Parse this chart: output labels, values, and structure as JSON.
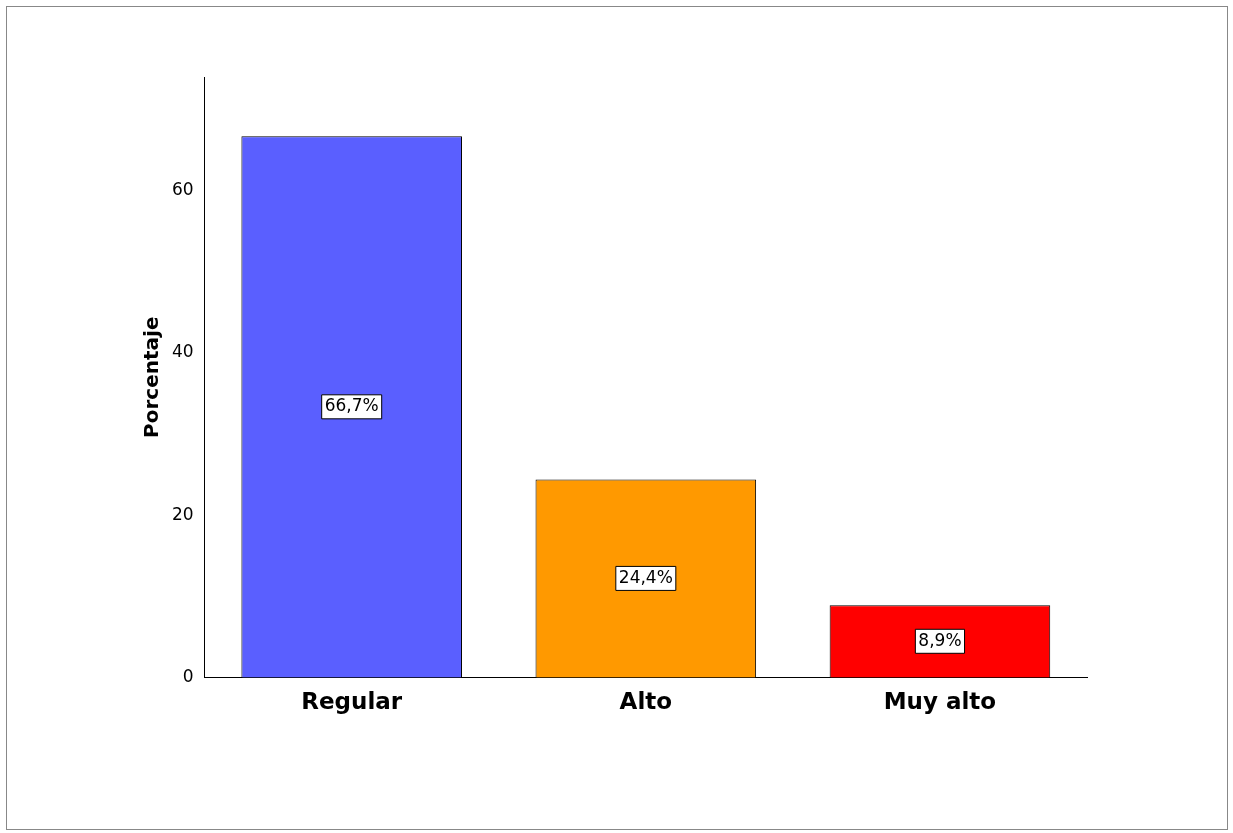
{
  "chart_data": {
    "type": "bar",
    "ylabel": "Porcentaje",
    "categories": [
      "Regular",
      "Alto",
      "Muy alto"
    ],
    "values": [
      66.7,
      24.4,
      8.9
    ],
    "colors": [
      "#5a5fff",
      "#ff9900",
      "#ff0000"
    ],
    "value_labels": [
      "66,7%",
      "24,4%",
      "8,9%"
    ],
    "ylim": [
      0,
      74
    ],
    "yticks": [
      0,
      20,
      40,
      60
    ],
    "grid": false,
    "legend": false
  }
}
